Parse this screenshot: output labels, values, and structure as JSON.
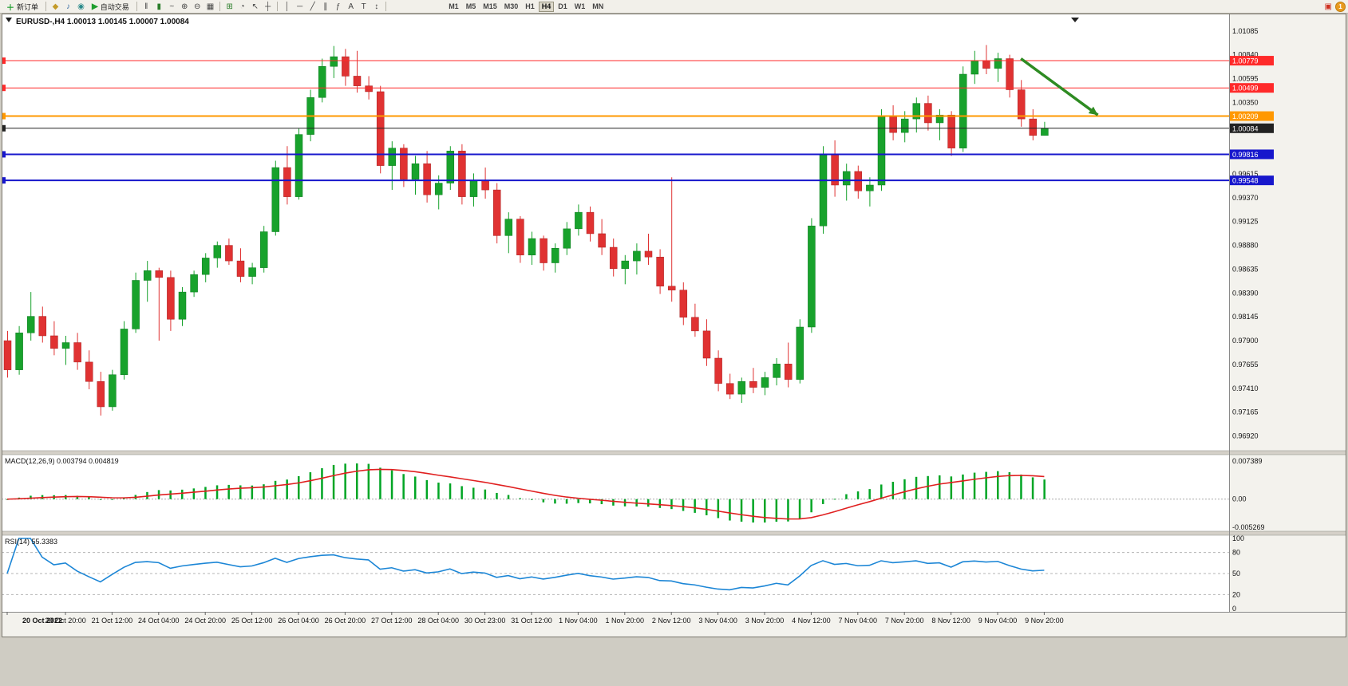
{
  "toolbar": {
    "new_order_label": "新订单",
    "auto_trading_label": "自动交易",
    "timeframes": [
      "M1",
      "M5",
      "M15",
      "M30",
      "H1",
      "H4",
      "D1",
      "W1",
      "MN"
    ],
    "active_timeframe": "H4",
    "icon_groups": [
      [
        {
          "n": "favorites-icon",
          "g": "◆",
          "c": "#c39a28"
        },
        {
          "n": "alerts-icon",
          "g": "♪",
          "c": "#3a6ea5"
        },
        {
          "n": "community-icon",
          "g": "◉",
          "c": "#2a8a8a"
        }
      ],
      [
        {
          "n": "bar-chart-icon",
          "g": "‖",
          "c": "#444444"
        },
        {
          "n": "candlestick-icon",
          "g": "▮",
          "c": "#2a7d2a"
        },
        {
          "n": "line-chart-icon",
          "g": "~",
          "c": "#444444"
        },
        {
          "n": "zoom-in-icon",
          "g": "⊕",
          "c": "#444444"
        },
        {
          "n": "zoom-out-icon",
          "g": "⊖",
          "c": "#444444"
        },
        {
          "n": "tile-windows-icon",
          "g": "▦",
          "c": "#444444"
        }
      ],
      [
        {
          "n": "indicators-icon",
          "g": "⊞",
          "c": "#2a7d2a"
        },
        {
          "n": "time-periods-icon",
          "g": "◔",
          "c": "#444444"
        },
        {
          "n": "cursor-icon",
          "g": "↖",
          "c": "#444444"
        },
        {
          "n": "crosshair-icon",
          "g": "┼",
          "c": "#444444"
        }
      ],
      [
        {
          "n": "vertical-line-icon",
          "g": "│",
          "c": "#444444"
        },
        {
          "n": "horizontal-line-icon",
          "g": "─",
          "c": "#444444"
        },
        {
          "n": "trendline-icon",
          "g": "╱",
          "c": "#444444"
        },
        {
          "n": "equidistant-channel-icon",
          "g": "∥",
          "c": "#444444"
        },
        {
          "n": "fibonacci-icon",
          "g": "ƒ",
          "c": "#444444"
        },
        {
          "n": "text-icon",
          "g": "A",
          "c": "#444444"
        },
        {
          "n": "label-icon",
          "g": "T",
          "c": "#444444"
        },
        {
          "n": "arrow-object-icon",
          "g": "↕",
          "c": "#444444"
        }
      ]
    ],
    "right_icons": [
      {
        "n": "news-icon",
        "g": "▣",
        "c": "#cf3020"
      },
      {
        "n": "notifications-badge",
        "g": "1",
        "badge": true
      }
    ]
  },
  "chart_data": {
    "type": "candlestick",
    "symbol": "EURUSD-",
    "timeframe": "H4",
    "title_text": "EURUSD-,H4",
    "ohlc_text": "1.00013 1.00145 1.00007 1.00084",
    "ylim": [
      0.96785,
      1.01165
    ],
    "y_ticks": [
      "1.01085",
      "1.00840",
      "1.00595",
      "1.00350",
      "1.00105",
      "0.99860",
      "0.99615",
      "0.99370",
      "0.99125",
      "0.98880",
      "0.98635",
      "0.98390",
      "0.98145",
      "0.97900",
      "0.97655",
      "0.97410",
      "0.97165",
      "0.96920"
    ],
    "time_labels": [
      "20 Oct 2022",
      "20 Oct 20:00",
      "21 Oct 12:00",
      "24 Oct 04:00",
      "24 Oct 20:00",
      "25 Oct 12:00",
      "26 Oct 04:00",
      "26 Oct 20:00",
      "27 Oct 12:00",
      "28 Oct 04:00",
      "30 Oct 23:00",
      "31 Oct 12:00",
      "1 Nov 04:00",
      "1 Nov 20:00",
      "2 Nov 12:00",
      "3 Nov 04:00",
      "3 Nov 20:00",
      "4 Nov 12:00",
      "7 Nov 04:00",
      "7 Nov 20:00",
      "8 Nov 12:00",
      "9 Nov 04:00",
      "9 Nov 20:00"
    ],
    "candles": [
      [
        0.979,
        0.98,
        0.9752,
        0.976
      ],
      [
        0.976,
        0.9805,
        0.9755,
        0.9798
      ],
      [
        0.9798,
        0.984,
        0.979,
        0.9815
      ],
      [
        0.9815,
        0.9825,
        0.9788,
        0.9795
      ],
      [
        0.9795,
        0.981,
        0.9775,
        0.9782
      ],
      [
        0.9782,
        0.9795,
        0.9765,
        0.9788
      ],
      [
        0.9788,
        0.9798,
        0.976,
        0.9768
      ],
      [
        0.9768,
        0.978,
        0.974,
        0.9748
      ],
      [
        0.9748,
        0.9758,
        0.9713,
        0.9722
      ],
      [
        0.9722,
        0.976,
        0.9718,
        0.9755
      ],
      [
        0.9755,
        0.981,
        0.975,
        0.9802
      ],
      [
        0.9802,
        0.986,
        0.9798,
        0.9852
      ],
      [
        0.9852,
        0.9872,
        0.983,
        0.9862
      ],
      [
        0.9862,
        0.9865,
        0.979,
        0.9855
      ],
      [
        0.9855,
        0.9862,
        0.98,
        0.9812
      ],
      [
        0.9812,
        0.9845,
        0.9805,
        0.984
      ],
      [
        0.984,
        0.9862,
        0.9835,
        0.9858
      ],
      [
        0.9858,
        0.988,
        0.985,
        0.9875
      ],
      [
        0.9875,
        0.9892,
        0.9865,
        0.9888
      ],
      [
        0.9888,
        0.9895,
        0.9868,
        0.9872
      ],
      [
        0.9872,
        0.9885,
        0.985,
        0.9856
      ],
      [
        0.9856,
        0.987,
        0.9848,
        0.9865
      ],
      [
        0.9865,
        0.9908,
        0.986,
        0.9902
      ],
      [
        0.9902,
        0.9975,
        0.9898,
        0.9968
      ],
      [
        0.9968,
        0.999,
        0.993,
        0.9938
      ],
      [
        0.9938,
        1.0008,
        0.9935,
        1.0002
      ],
      [
        1.0002,
        1.0048,
        0.9995,
        1.004
      ],
      [
        1.004,
        1.008,
        1.0035,
        1.0072
      ],
      [
        1.0072,
        1.0093,
        1.006,
        1.0082
      ],
      [
        1.0082,
        1.009,
        1.0052,
        1.0062
      ],
      [
        1.0062,
        1.0088,
        1.0045,
        1.0052
      ],
      [
        1.0052,
        1.0062,
        1.0038,
        1.0046
      ],
      [
        1.0046,
        1.0052,
        0.9962,
        0.997
      ],
      [
        0.997,
        0.9995,
        0.9945,
        0.9988
      ],
      [
        0.9988,
        0.9992,
        0.9948,
        0.9956
      ],
      [
        0.9956,
        0.998,
        0.994,
        0.9972
      ],
      [
        0.9972,
        0.9985,
        0.9932,
        0.994
      ],
      [
        0.994,
        0.996,
        0.9925,
        0.9952
      ],
      [
        0.9952,
        0.999,
        0.9945,
        0.9985
      ],
      [
        0.9985,
        0.9992,
        0.993,
        0.9938
      ],
      [
        0.9938,
        0.9962,
        0.9928,
        0.9955
      ],
      [
        0.9955,
        0.9968,
        0.9936,
        0.9945
      ],
      [
        0.9945,
        0.9952,
        0.989,
        0.9898
      ],
      [
        0.9898,
        0.9922,
        0.988,
        0.9915
      ],
      [
        0.9915,
        0.9918,
        0.987,
        0.9878
      ],
      [
        0.9878,
        0.9902,
        0.9868,
        0.9895
      ],
      [
        0.9895,
        0.9898,
        0.9862,
        0.987
      ],
      [
        0.987,
        0.989,
        0.986,
        0.9885
      ],
      [
        0.9885,
        0.9912,
        0.9878,
        0.9905
      ],
      [
        0.9905,
        0.993,
        0.9898,
        0.9922
      ],
      [
        0.9922,
        0.9928,
        0.9892,
        0.99
      ],
      [
        0.99,
        0.9915,
        0.9878,
        0.9886
      ],
      [
        0.9886,
        0.9895,
        0.9856,
        0.9864
      ],
      [
        0.9864,
        0.9878,
        0.9848,
        0.9872
      ],
      [
        0.9872,
        0.989,
        0.9858,
        0.9882
      ],
      [
        0.9882,
        0.99,
        0.9868,
        0.9876
      ],
      [
        0.9876,
        0.9884,
        0.9838,
        0.9846
      ],
      [
        0.9846,
        0.9958,
        0.983,
        0.9842
      ],
      [
        0.9842,
        0.985,
        0.9806,
        0.9814
      ],
      [
        0.9814,
        0.9828,
        0.9794,
        0.98
      ],
      [
        0.98,
        0.9812,
        0.9764,
        0.9772
      ],
      [
        0.9772,
        0.978,
        0.9738,
        0.9746
      ],
      [
        0.9746,
        0.9756,
        0.973,
        0.9735
      ],
      [
        0.9735,
        0.9752,
        0.9726,
        0.9748
      ],
      [
        0.9748,
        0.9762,
        0.9736,
        0.9742
      ],
      [
        0.9742,
        0.9758,
        0.9734,
        0.9752
      ],
      [
        0.9752,
        0.9772,
        0.9744,
        0.9766
      ],
      [
        0.9766,
        0.9788,
        0.9742,
        0.975
      ],
      [
        0.975,
        0.9812,
        0.9746,
        0.9804
      ],
      [
        0.9804,
        0.9916,
        0.9798,
        0.9908
      ],
      [
        0.9908,
        0.999,
        0.99,
        0.9982
      ],
      [
        0.9982,
        0.9996,
        0.9938,
        0.995
      ],
      [
        0.995,
        0.9972,
        0.9934,
        0.9964
      ],
      [
        0.9964,
        0.997,
        0.9936,
        0.9944
      ],
      [
        0.9944,
        0.9958,
        0.9928,
        0.995
      ],
      [
        0.995,
        1.0028,
        0.9944,
        1.002
      ],
      [
        1.002,
        1.0032,
        0.9996,
        1.0004
      ],
      [
        1.0004,
        1.0026,
        0.9994,
        1.0018
      ],
      [
        1.0018,
        1.004,
        1.0004,
        1.0034
      ],
      [
        1.0034,
        1.0042,
        1.0006,
        1.0014
      ],
      [
        1.0014,
        1.0028,
        0.9996,
        1.0022
      ],
      [
        1.0022,
        1.0026,
        0.998,
        0.9988
      ],
      [
        0.9988,
        1.0072,
        0.9984,
        1.0064
      ],
      [
        1.0064,
        1.0088,
        1.0054,
        1.0078
      ],
      [
        1.0078,
        1.0094,
        1.0064,
        1.007
      ],
      [
        1.007,
        1.0086,
        1.0056,
        1.008
      ],
      [
        1.008,
        1.0084,
        1.004,
        1.0048
      ],
      [
        1.0048,
        1.0058,
        1.001,
        1.0018
      ],
      [
        1.0018,
        1.0028,
        0.9996,
        1.0001
      ],
      [
        1.0001,
        1.0015,
        1.0001,
        1.0008
      ]
    ],
    "hlines": [
      {
        "price": 1.00779,
        "label": "1.00779",
        "color": "#ff2a2a",
        "width": 1,
        "tag_text": "#ffffff"
      },
      {
        "price": 1.00499,
        "label": "1.00499",
        "color": "#ff2a2a",
        "width": 1,
        "tag_text": "#ffffff"
      },
      {
        "price": 1.00209,
        "label": "1.00209",
        "color": "#ff9800",
        "width": 2,
        "tag_text": "#ffffff"
      },
      {
        "price": 1.00084,
        "label": "1.00084",
        "color": "#222222",
        "width": 1,
        "tag_text": "#ffffff"
      },
      {
        "price": 0.99816,
        "label": "0.99816",
        "color": "#1717cc",
        "width": 2,
        "tag_text": "#ffffff"
      },
      {
        "price": 0.99548,
        "label": "0.99548",
        "color": "#1717cc",
        "width": 2,
        "tag_text": "#ffffff"
      }
    ],
    "arrow": {
      "from_bar": 87.0,
      "from_price": 1.008,
      "to_bar": 93.6,
      "to_price": 1.0022,
      "color": "#2e8b22"
    },
    "macd": {
      "label": "MACD(12,26,9)",
      "values_text": "0.003794 0.004819",
      "params": [
        12,
        26,
        9
      ],
      "axis_labels": [
        "0.007389",
        "0.00",
        "-0.005269"
      ],
      "hist_color": "#00a524",
      "signal_color": "#e02020"
    },
    "rsi": {
      "label": "RSI(14)",
      "value_text": "55.3383",
      "period": 14,
      "levels": [
        80,
        50,
        20
      ],
      "axis_labels": [
        "100",
        "80",
        "50",
        "20",
        "0"
      ],
      "line_color": "#1c86d6"
    },
    "colors": {
      "up": "#18a22c",
      "down": "#e03232",
      "bg": "#ffffff",
      "axis_text": "#111111"
    }
  }
}
